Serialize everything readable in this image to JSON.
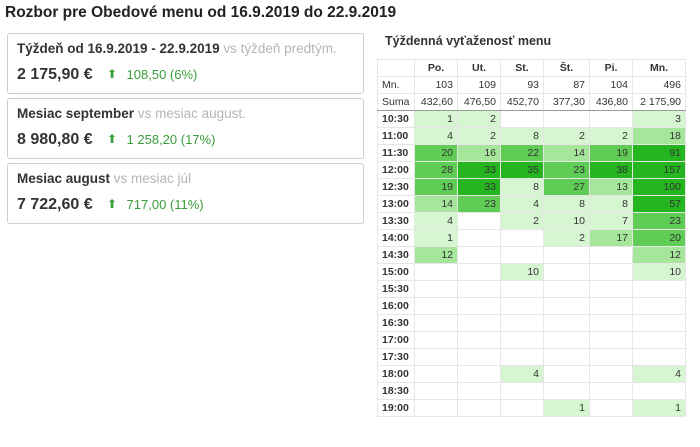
{
  "title": "Rozbor pre Obedové menu od 16.9.2019 do 22.9.2019",
  "cards": [
    {
      "label": "Týždeň od 16.9.2019 - 22.9.2019",
      "vs": "vs týždeň predtým.",
      "amount": "2 175,90 €",
      "arrow": "up-arrow-icon",
      "delta": "108,50 (6%)"
    },
    {
      "label": "Mesiac september",
      "vs": "vs mesiac august.",
      "amount": "8 980,80 €",
      "arrow": "up-arrow-icon",
      "delta": "1 258,20 (17%)"
    },
    {
      "label": "Mesiac august",
      "vs": "vs mesiac júl",
      "amount": "7 722,60 €",
      "arrow": "up-arrow-icon",
      "delta": "717,00 (11%)"
    }
  ],
  "utilization": {
    "title": "Týždenná vyťaženosť menu",
    "days": [
      "Po.",
      "Ut.",
      "St.",
      "Št.",
      "Pi.",
      "Mn."
    ],
    "mn_label": "Mn.",
    "mn": [
      "103",
      "109",
      "93",
      "87",
      "104",
      "496"
    ],
    "suma_label": "Suma",
    "suma": [
      "432,60",
      "476,50",
      "452,70",
      "377,30",
      "436,80",
      "2 175,90"
    ],
    "rows": [
      {
        "time": "10:30",
        "values": [
          1,
          2,
          null,
          null,
          null,
          3
        ]
      },
      {
        "time": "11:00",
        "values": [
          4,
          2,
          8,
          2,
          2,
          18
        ]
      },
      {
        "time": "11:30",
        "values": [
          20,
          16,
          22,
          14,
          19,
          91
        ]
      },
      {
        "time": "12:00",
        "values": [
          28,
          33,
          35,
          23,
          38,
          157
        ]
      },
      {
        "time": "12:30",
        "values": [
          19,
          33,
          8,
          27,
          13,
          100
        ]
      },
      {
        "time": "13:00",
        "values": [
          14,
          23,
          4,
          8,
          8,
          57
        ]
      },
      {
        "time": "13:30",
        "values": [
          4,
          null,
          2,
          10,
          7,
          23
        ]
      },
      {
        "time": "14:00",
        "values": [
          1,
          null,
          null,
          2,
          17,
          20
        ]
      },
      {
        "time": "14:30",
        "values": [
          12,
          null,
          null,
          null,
          null,
          12
        ]
      },
      {
        "time": "15:00",
        "values": [
          null,
          null,
          10,
          null,
          null,
          10
        ]
      },
      {
        "time": "15:30",
        "values": [
          null,
          null,
          null,
          null,
          null,
          null
        ]
      },
      {
        "time": "16:00",
        "values": [
          null,
          null,
          null,
          null,
          null,
          null
        ]
      },
      {
        "time": "16:30",
        "values": [
          null,
          null,
          null,
          null,
          null,
          null
        ]
      },
      {
        "time": "17:00",
        "values": [
          null,
          null,
          null,
          null,
          null,
          null
        ]
      },
      {
        "time": "17:30",
        "values": [
          null,
          null,
          null,
          null,
          null,
          null
        ]
      },
      {
        "time": "18:00",
        "values": [
          null,
          null,
          4,
          null,
          null,
          4
        ]
      },
      {
        "time": "18:30",
        "values": [
          null,
          null,
          null,
          null,
          null,
          null
        ]
      },
      {
        "time": "19:00",
        "values": [
          null,
          null,
          null,
          1,
          null,
          1
        ]
      }
    ],
    "colors": {
      "light": "#d6f5d1",
      "mid": "#a6e69b",
      "strong": "#5fcc55",
      "max": "#24b51f"
    }
  }
}
